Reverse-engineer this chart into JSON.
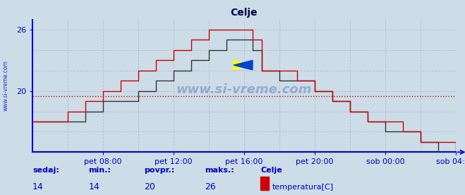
{
  "title": "Celje",
  "bg_color": "#ccdde8",
  "plot_bg_color": "#ccdde8",
  "line_color": "#cc0000",
  "line_color2": "#333333",
  "grid_color": "#bbbbcc",
  "watermark": "www.si-vreme.com",
  "watermark_color": "#4466aa",
  "sidebar_text": "www.si-vreme.com",
  "ylim_min": 14,
  "ylim_max": 27,
  "ytick_vals": [
    20,
    26
  ],
  "xlim_min": 0,
  "xlim_max": 288,
  "xtick_positions": [
    48,
    96,
    144,
    192,
    240,
    288
  ],
  "xtick_labels": [
    "pet 08:00",
    "pet 12:00",
    "pet 16:00",
    "pet 20:00",
    "sob 00:00",
    "sob 04:00"
  ],
  "title_color": "#000044",
  "label_color": "#0000bb",
  "axis_color": "#0000cc",
  "stat_labels": [
    "sedaj:",
    "min.:",
    "povpr.:",
    "maks.:"
  ],
  "stat_values": [
    "14",
    "14",
    "20",
    "26"
  ],
  "legend_name": "Celje",
  "legend_label": "temperatura[C]",
  "legend_color": "#cc0000",
  "step_x": [
    0,
    12,
    24,
    36,
    48,
    60,
    72,
    84,
    96,
    108,
    120,
    132,
    144,
    150,
    156,
    168,
    180,
    192,
    204,
    216,
    228,
    240,
    252,
    264,
    276,
    288
  ],
  "step_y": [
    17,
    17,
    18,
    19,
    20,
    21,
    22,
    23,
    24,
    25,
    26,
    26,
    26,
    25,
    22,
    22,
    21,
    20,
    19,
    18,
    17,
    17,
    16,
    15,
    15,
    14
  ],
  "step_y2": [
    17,
    17,
    17,
    18,
    19,
    19,
    20,
    21,
    22,
    23,
    24,
    25,
    25,
    24,
    22,
    21,
    21,
    20,
    19,
    18,
    17,
    16,
    16,
    15,
    14,
    14
  ],
  "avg_line_y": 19.5,
  "avg_line_color": "#cc0000",
  "vgrid_positions": [
    24,
    48,
    72,
    96,
    120,
    144,
    168,
    192,
    216,
    240,
    264,
    288
  ],
  "hgrid_positions": [
    16,
    18,
    20,
    22,
    24,
    26
  ],
  "figwidth": 6.59,
  "figheight": 2.76,
  "dpi": 100
}
